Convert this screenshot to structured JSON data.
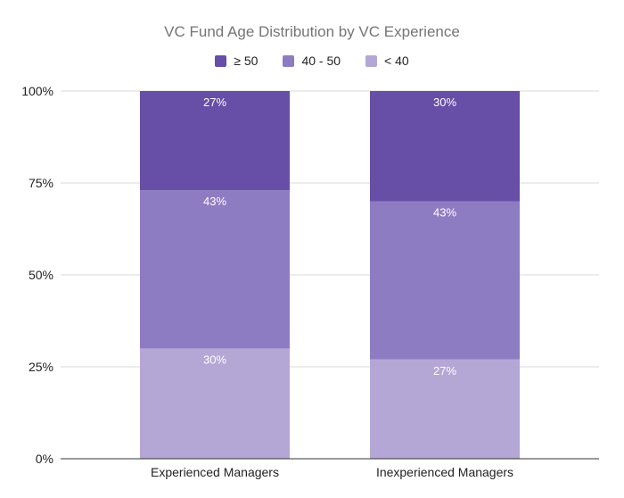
{
  "chart_data": {
    "type": "bar",
    "stacked": true,
    "normalized": true,
    "title": "VC Fund Age Distribution by VC Experience",
    "categories": [
      "Experienced Managers",
      "Inexperienced Managers"
    ],
    "series": [
      {
        "name": "< 40",
        "values": [
          30,
          27
        ],
        "labels": [
          "30%",
          "27%"
        ],
        "color": "#b4a7d6"
      },
      {
        "name": "40 - 50",
        "values": [
          43,
          43
        ],
        "labels": [
          "43%",
          "43%"
        ],
        "color": "#8e7cc3"
      },
      {
        "name": "≥ 50",
        "values": [
          27,
          30
        ],
        "labels": [
          "27%",
          "30%"
        ],
        "color": "#674ea7"
      }
    ],
    "legend_order": [
      "≥ 50",
      "40 - 50",
      "< 40"
    ],
    "legend_position": "top",
    "y_ticks": [
      "0%",
      "25%",
      "50%",
      "75%",
      "100%"
    ],
    "y_tick_values": [
      0,
      25,
      50,
      75,
      100
    ],
    "ylim": [
      0,
      100
    ],
    "grid": true
  }
}
